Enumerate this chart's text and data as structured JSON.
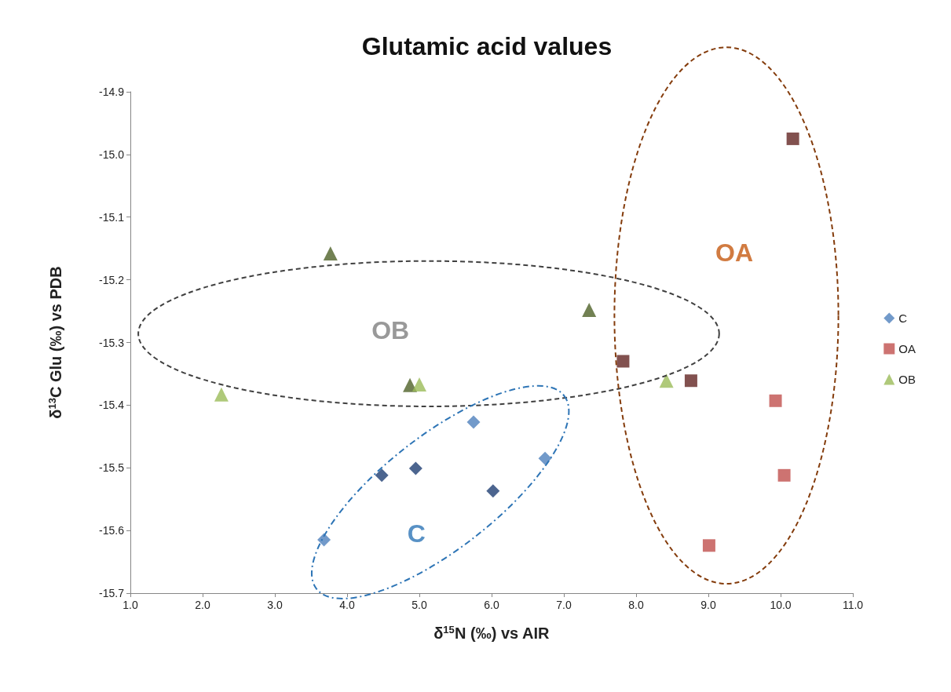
{
  "chart_data": {
    "type": "scatter",
    "title": "Glutamic acid values",
    "xlabel": "δ$^{15}$N (‰) vs AIR",
    "ylabel": "δ$^{13}$C Glu (‰) vs PDB",
    "series": [
      {
        "name": "C",
        "marker": "diamond",
        "color": "#4f81bd",
        "x": [
          3.68,
          4.48,
          4.95,
          5.75,
          6.02,
          6.74
        ],
        "values": [
          -15.615,
          -15.512,
          -15.501,
          -15.427,
          -15.537,
          -15.485
        ],
        "colors": [
          "#4f81bd",
          "#1f3f73",
          "#1f3f73",
          "#4f81bd",
          "#1f3f73",
          "#4f81bd"
        ]
      },
      {
        "name": "OA",
        "marker": "square",
        "color": "#c0504d",
        "x": [
          10.17,
          7.82,
          8.76,
          9.93,
          10.05,
          9.01
        ],
        "values": [
          -14.975,
          -15.33,
          -15.361,
          -15.393,
          -15.512,
          -15.624
        ],
        "colors": [
          "#632523",
          "#632523",
          "#632523",
          "#c0504d",
          "#c0504d",
          "#c0504d"
        ]
      },
      {
        "name": "OB",
        "marker": "triangle",
        "color": "#9bbb59",
        "x": [
          3.77,
          7.35,
          4.87,
          5.0,
          2.26,
          8.42
        ],
        "values": [
          -15.158,
          -15.248,
          -15.368,
          -15.367,
          -15.383,
          -15.361
        ],
        "colors": [
          "#4f6228",
          "#4f6228",
          "#4f6228",
          "#9bbb59",
          "#9bbb59",
          "#9bbb59"
        ]
      }
    ],
    "xlim": [
      1.0,
      11.0
    ],
    "xticks": [
      {
        "value": 1,
        "label": "1.0"
      },
      {
        "value": 2,
        "label": "2.0"
      },
      {
        "value": 3,
        "label": "3.0"
      },
      {
        "value": 4,
        "label": "4.0"
      },
      {
        "value": 5,
        "label": "5.0"
      },
      {
        "value": 6,
        "label": "6.0"
      },
      {
        "value": 7,
        "label": "7.0"
      },
      {
        "value": 8,
        "label": "8.0"
      },
      {
        "value": 9,
        "label": "9.0"
      },
      {
        "value": 10,
        "label": "10.0"
      },
      {
        "value": 11,
        "label": "11.0"
      }
    ],
    "ylim": [
      -15.7,
      -14.9
    ],
    "yticks": [
      -15.7,
      -15.6,
      -15.5,
      -15.4,
      -15.3,
      -15.2,
      -15.1,
      {
        "value": -15.0,
        "label": "-15.0"
      },
      -14.9
    ],
    "grid": false,
    "legend": "right",
    "annotations": [
      "OB",
      "OA",
      "C"
    ]
  }
}
